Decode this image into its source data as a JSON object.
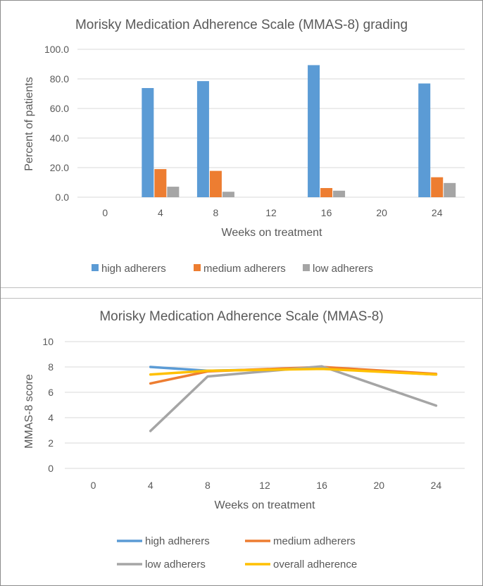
{
  "chart_data": [
    {
      "type": "bar",
      "title": "Morisky Medication Adherence Scale (MMAS-8) grading",
      "xlabel": "Weeks on treatment",
      "ylabel": "Percent of patients",
      "categories": [
        "0",
        "4",
        "8",
        "12",
        "16",
        "20",
        "24"
      ],
      "y_ticks": [
        "0.0",
        "20.0",
        "40.0",
        "60.0",
        "80.0",
        "100.0"
      ],
      "ylim": [
        0,
        100
      ],
      "grid": true,
      "legend_position": "bottom",
      "series": [
        {
          "name": "high adherers",
          "color": "#5b9bd5",
          "values": [
            null,
            73.8,
            78.5,
            null,
            89.3,
            null,
            76.9
          ]
        },
        {
          "name": "medium adherers",
          "color": "#ed7d31",
          "values": [
            null,
            19.0,
            17.8,
            null,
            6.2,
            null,
            13.5
          ]
        },
        {
          "name": "low adherers",
          "color": "#a5a5a5",
          "values": [
            null,
            7.1,
            3.7,
            null,
            4.4,
            null,
            9.6
          ]
        }
      ]
    },
    {
      "type": "line",
      "title": "Morisky Medication Adherence Scale (MMAS-8)",
      "xlabel": "Weeks on treatment",
      "ylabel": "MMAS-8 score",
      "categories": [
        "0",
        "4",
        "8",
        "12",
        "16",
        "20",
        "24"
      ],
      "y_ticks": [
        "0",
        "2",
        "4",
        "6",
        "8",
        "10"
      ],
      "ylim": [
        0,
        10
      ],
      "grid": true,
      "legend_position": "bottom",
      "series": [
        {
          "name": "high adherers",
          "color": "#5b9bd5",
          "values": [
            null,
            8.0,
            7.7,
            null,
            7.9,
            null,
            7.4
          ]
        },
        {
          "name": "medium adherers",
          "color": "#ed7d31",
          "values": [
            null,
            6.7,
            7.65,
            null,
            8.0,
            null,
            7.45
          ]
        },
        {
          "name": "low adherers",
          "color": "#a5a5a5",
          "values": [
            null,
            2.95,
            7.25,
            null,
            8.05,
            null,
            4.95
          ]
        },
        {
          "name": "overall adherence",
          "color": "#ffc000",
          "values": [
            null,
            7.4,
            7.7,
            null,
            7.85,
            null,
            7.4
          ]
        }
      ]
    }
  ]
}
